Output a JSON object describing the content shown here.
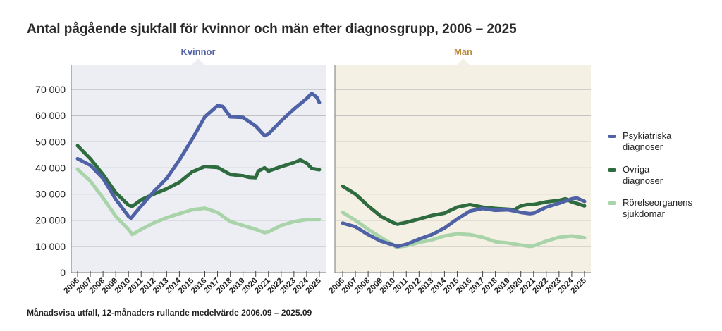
{
  "title": "Antal pågående sjukfall för kvinnor och män efter diagnosgrupp, 2006 – 2025",
  "footer": "Månadsvisa utfall, 12-månaders rullande medelvärde 2006.09 – 2025.09",
  "colors": {
    "psyk": "#4f62a6",
    "ovriga": "#2e6b3e",
    "rorelse": "#a9d4a9",
    "kvinnor_bg": "#eceef4",
    "man_bg": "#f5f0e4",
    "kvinnor_label": "#5566a8",
    "man_label": "#b8893a"
  },
  "legend": [
    {
      "key": "psyk",
      "line1": "Psykiatriska",
      "line2": "diagnoser"
    },
    {
      "key": "ovriga",
      "line1": "Övriga",
      "line2": "diagnoser"
    },
    {
      "key": "rorelse",
      "line1": "Rörelseorganens",
      "line2": "sjukdomar"
    }
  ],
  "chart_data": [
    {
      "type": "line",
      "panel_label": "Kvinnor",
      "ylim": [
        0,
        70000
      ],
      "yticks": [
        "0",
        "10 000",
        "20 000",
        "30 000",
        "40 000",
        "50 000",
        "60 000",
        "70 000"
      ],
      "xticks": [
        "2006",
        "2007",
        "2008",
        "2009",
        "2010",
        "2011",
        "2012",
        "2013",
        "2014",
        "2015",
        "2016",
        "2017",
        "2018",
        "2019",
        "2020",
        "2021",
        "2022",
        "2023",
        "2024",
        "2025"
      ],
      "grid": true,
      "series": [
        {
          "key": "psyk",
          "name": "Psykiatriska diagnoser",
          "points": [
            [
              2006,
              43500
            ],
            [
              2007,
              41000
            ],
            [
              2008,
              36000
            ],
            [
              2009,
              28000
            ],
            [
              2010,
              21500
            ],
            [
              2010.2,
              20800
            ],
            [
              2011,
              25500
            ],
            [
              2012,
              31000
            ],
            [
              2013,
              36000
            ],
            [
              2014,
              43000
            ],
            [
              2015,
              51000
            ],
            [
              2016,
              59500
            ],
            [
              2017,
              63800
            ],
            [
              2017.4,
              63500
            ],
            [
              2018,
              59500
            ],
            [
              2019,
              59300
            ],
            [
              2020,
              56000
            ],
            [
              2020.7,
              52300
            ],
            [
              2021,
              53000
            ],
            [
              2022,
              58000
            ],
            [
              2023,
              62500
            ],
            [
              2024,
              66500
            ],
            [
              2024.4,
              68500
            ],
            [
              2024.8,
              67000
            ],
            [
              2025,
              65000
            ]
          ]
        },
        {
          "key": "ovriga",
          "name": "Övriga diagnoser",
          "points": [
            [
              2006,
              48500
            ],
            [
              2007,
              43500
            ],
            [
              2008,
              37500
            ],
            [
              2009,
              30500
            ],
            [
              2010,
              25800
            ],
            [
              2010.3,
              25300
            ],
            [
              2011,
              27800
            ],
            [
              2012,
              30000
            ],
            [
              2013,
              32000
            ],
            [
              2014,
              34500
            ],
            [
              2015,
              38500
            ],
            [
              2016,
              40500
            ],
            [
              2017,
              40200
            ],
            [
              2018,
              37500
            ],
            [
              2019,
              37000
            ],
            [
              2019.5,
              36400
            ],
            [
              2020,
              36300
            ],
            [
              2020.2,
              38800
            ],
            [
              2020.7,
              40000
            ],
            [
              2021,
              38800
            ],
            [
              2022,
              40500
            ],
            [
              2023,
              42000
            ],
            [
              2023.5,
              43000
            ],
            [
              2024,
              41800
            ],
            [
              2024.4,
              39800
            ],
            [
              2025,
              39300
            ]
          ]
        },
        {
          "key": "rorelse",
          "name": "Rörelseorganens sjukdomar",
          "points": [
            [
              2006,
              39500
            ],
            [
              2007,
              35000
            ],
            [
              2008,
              28500
            ],
            [
              2009,
              21500
            ],
            [
              2010,
              16500
            ],
            [
              2010.3,
              14600
            ],
            [
              2011,
              16500
            ],
            [
              2012,
              19000
            ],
            [
              2013,
              21000
            ],
            [
              2014,
              22500
            ],
            [
              2015,
              24000
            ],
            [
              2016,
              24600
            ],
            [
              2017,
              23000
            ],
            [
              2018,
              19500
            ],
            [
              2019,
              18000
            ],
            [
              2020,
              16500
            ],
            [
              2020.7,
              15300
            ],
            [
              2021,
              15600
            ],
            [
              2022,
              18000
            ],
            [
              2023,
              19500
            ],
            [
              2024,
              20300
            ],
            [
              2025,
              20300
            ]
          ]
        }
      ]
    },
    {
      "type": "line",
      "panel_label": "Män",
      "ylim": [
        0,
        70000
      ],
      "xticks": [
        "2006",
        "2007",
        "2008",
        "2009",
        "2010",
        "2011",
        "2012",
        "2013",
        "2014",
        "2015",
        "2016",
        "2017",
        "2018",
        "2019",
        "2020",
        "2021",
        "2022",
        "2023",
        "2024",
        "2025"
      ],
      "grid": true,
      "series": [
        {
          "key": "psyk",
          "name": "Psykiatriska diagnoser",
          "points": [
            [
              2006,
              18900
            ],
            [
              2007,
              17500
            ],
            [
              2008,
              14500
            ],
            [
              2009,
              12000
            ],
            [
              2010,
              10500
            ],
            [
              2010.3,
              10000
            ],
            [
              2011,
              10800
            ],
            [
              2012,
              12800
            ],
            [
              2013,
              14500
            ],
            [
              2014,
              17000
            ],
            [
              2015,
              20500
            ],
            [
              2016,
              23500
            ],
            [
              2017,
              24500
            ],
            [
              2018,
              23800
            ],
            [
              2019,
              24000
            ],
            [
              2020,
              23000
            ],
            [
              2020.7,
              22500
            ],
            [
              2021,
              22700
            ],
            [
              2022,
              25000
            ],
            [
              2023,
              26500
            ],
            [
              2024,
              28200
            ],
            [
              2024.4,
              28500
            ],
            [
              2025,
              27200
            ]
          ]
        },
        {
          "key": "ovriga",
          "name": "Övriga diagnoser",
          "points": [
            [
              2006,
              33000
            ],
            [
              2007,
              30000
            ],
            [
              2008,
              25500
            ],
            [
              2009,
              21500
            ],
            [
              2010,
              19000
            ],
            [
              2010.3,
              18500
            ],
            [
              2011,
              19200
            ],
            [
              2012,
              20500
            ],
            [
              2013,
              21800
            ],
            [
              2014,
              22700
            ],
            [
              2015,
              25000
            ],
            [
              2016,
              26000
            ],
            [
              2017,
              25000
            ],
            [
              2018,
              24500
            ],
            [
              2019,
              24200
            ],
            [
              2019.5,
              24000
            ],
            [
              2020,
              25500
            ],
            [
              2020.5,
              26000
            ],
            [
              2021,
              26000
            ],
            [
              2022,
              27000
            ],
            [
              2023,
              27600
            ],
            [
              2023.5,
              28200
            ],
            [
              2024,
              27000
            ],
            [
              2025,
              25500
            ]
          ]
        },
        {
          "key": "rorelse",
          "name": "Rörelseorganens sjukdomar",
          "points": [
            [
              2006,
              23000
            ],
            [
              2007,
              20000
            ],
            [
              2008,
              16500
            ],
            [
              2009,
              13500
            ],
            [
              2010,
              10500
            ],
            [
              2010.2,
              9700
            ],
            [
              2011,
              10200
            ],
            [
              2012,
              11500
            ],
            [
              2013,
              12500
            ],
            [
              2014,
              14000
            ],
            [
              2015,
              14800
            ],
            [
              2016,
              14500
            ],
            [
              2017,
              13500
            ],
            [
              2018,
              11800
            ],
            [
              2019,
              11300
            ],
            [
              2020,
              10500
            ],
            [
              2020.7,
              10000
            ],
            [
              2021,
              10200
            ],
            [
              2022,
              12000
            ],
            [
              2023,
              13500
            ],
            [
              2024,
              14000
            ],
            [
              2025,
              13300
            ]
          ]
        }
      ]
    }
  ]
}
